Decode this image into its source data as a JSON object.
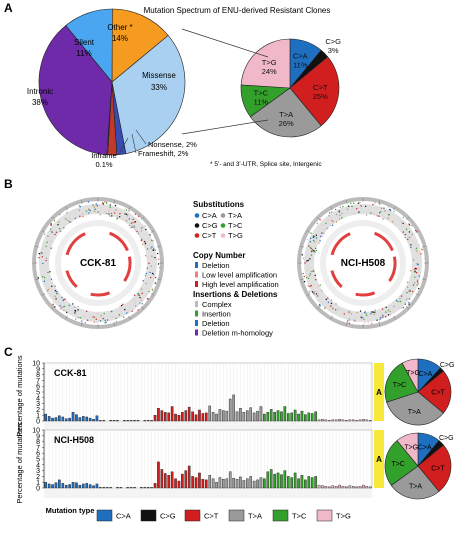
{
  "panel_labels": {
    "a": "A",
    "b": "B",
    "c": "C"
  },
  "colors": {
    "C>A": "#1f6fc1",
    "C>G": "#111111",
    "C>T": "#d11f1f",
    "T>A": "#9a9a9a",
    "T>C": "#34a02c",
    "T>G": "#f0b8c8",
    "silent": "#4aa6f0",
    "other": "#f59b1f",
    "intronic": "#6e2aa8",
    "missense": "#a9d0f0",
    "nonsense": "#3a4bb0",
    "frameshift": "#c0392b",
    "inframe": "#f2dd2c"
  },
  "panelA": {
    "title": "Mutation Spectrum of ENU-derived Resistant Clones",
    "footnote": "* 5'- and 3'-UTR, Splice site, Intergenic"
  },
  "panelB": {
    "sample1": "CCK-81",
    "sample2": "NCI-H508",
    "legend": {
      "substitutions_title": "Substitutions",
      "sub_items": [
        "C>A",
        "T>A",
        "C>G",
        "T>C",
        "C>T",
        "T>G"
      ],
      "copy_title": "Copy Number",
      "copy_items": [
        "Deletion",
        "Low level amplification",
        "High level amplification"
      ],
      "indel_title": "Insertions & Deletions",
      "indel_items": [
        "Complex",
        "Insertion",
        "Deletion",
        "Deletion m-homology"
      ]
    }
  },
  "panelC": {
    "ylabel": "Percentage of mutations",
    "ytick_labels": [
      "0",
      "1",
      "2",
      "3",
      "4",
      "5",
      "6",
      "7",
      "8",
      "9",
      "10"
    ],
    "side_label": "A",
    "legend_title": "Mutation type",
    "legend_items": [
      "C>A",
      "C>G",
      "C>T",
      "T>A",
      "T>C",
      "T>G"
    ]
  },
  "chart_data": [
    {
      "type": "pie",
      "title": "Mutation Spectrum of ENU-derived Resistant Clones",
      "slices": [
        {
          "label": "Other *",
          "value": 14,
          "display": "14%"
        },
        {
          "label": "Missense",
          "value": 33,
          "display": "33%"
        },
        {
          "label": "Nonsense",
          "value": 2,
          "display": "2%"
        },
        {
          "label": "Frameshift",
          "value": 2,
          "display": "2%"
        },
        {
          "label": "Inframe",
          "value": 0.1,
          "display": "0.1%"
        },
        {
          "label": "Intronic",
          "value": 38,
          "display": "38%"
        },
        {
          "label": "Silent",
          "value": 11,
          "display": "11%"
        }
      ]
    },
    {
      "type": "pie",
      "slices": [
        {
          "label": "C>A",
          "value": 11,
          "display": "11%"
        },
        {
          "label": "C>G",
          "value": 3,
          "display": "3%"
        },
        {
          "label": "C>T",
          "value": 25,
          "display": "25%"
        },
        {
          "label": "T>A",
          "value": 26,
          "display": "26%"
        },
        {
          "label": "T>C",
          "value": 11,
          "display": "11%"
        },
        {
          "label": "T>G",
          "value": 24,
          "display": "24%"
        }
      ]
    },
    {
      "type": "bar",
      "title": "CCK-81",
      "ylim": [
        0,
        10
      ],
      "groups": [
        "C>A",
        "C>G",
        "C>T",
        "T>A",
        "T>C",
        "T>G"
      ],
      "values": [
        [
          1.2,
          0.8,
          0.5,
          0.6,
          0.9,
          0.7,
          0.4,
          0.5,
          1.5,
          1.1,
          0.6,
          0.8,
          0.7,
          0.5,
          0.3,
          0.9
        ],
        [
          0.1,
          0.1,
          0.0,
          0.1,
          0.1,
          0.1,
          0.0,
          0.1,
          0.1,
          0.1,
          0.1,
          0.1,
          0.0,
          0.1,
          0.1,
          0.1
        ],
        [
          1.0,
          2.2,
          1.8,
          1.5,
          1.4,
          2.5,
          1.2,
          1.0,
          1.5,
          1.8,
          2.4,
          1.6,
          1.1,
          1.9,
          1.3,
          1.4
        ],
        [
          2.6,
          1.5,
          1.2,
          2.0,
          1.8,
          1.7,
          3.8,
          4.5,
          1.6,
          2.2,
          1.5,
          1.8,
          2.3,
          1.4,
          1.7,
          2.5
        ],
        [
          1.2,
          1.5,
          2.0,
          1.5,
          1.8,
          1.6,
          2.5,
          1.3,
          1.4,
          1.9,
          1.2,
          1.7,
          1.1,
          1.4,
          1.3,
          1.6
        ],
        [
          0.2,
          0.3,
          0.2,
          0.1,
          0.2,
          0.2,
          0.3,
          0.2,
          0.1,
          0.2,
          0.2,
          0.1,
          0.2,
          0.3,
          0.2,
          0.1
        ]
      ],
      "pie": [
        {
          "label": "C>A",
          "value": 12
        },
        {
          "label": "C>G",
          "value": 2
        },
        {
          "label": "C>T",
          "value": 22
        },
        {
          "label": "T>A",
          "value": 34
        },
        {
          "label": "T>C",
          "value": 22
        },
        {
          "label": "T>G",
          "value": 8
        }
      ]
    },
    {
      "type": "bar",
      "title": "NCI-H508",
      "ylim": [
        0,
        10
      ],
      "groups": [
        "C>A",
        "C>G",
        "C>T",
        "T>A",
        "T>C",
        "T>G"
      ],
      "values": [
        [
          1.0,
          0.7,
          0.6,
          0.9,
          1.4,
          0.8,
          0.5,
          0.6,
          1.0,
          0.9,
          0.5,
          0.7,
          0.8,
          0.6,
          0.4,
          0.7
        ],
        [
          0.1,
          0.1,
          0.1,
          0.1,
          0.0,
          0.1,
          0.1,
          0.0,
          0.1,
          0.1,
          0.1,
          0.0,
          0.1,
          0.1,
          0.1,
          0.1
        ],
        [
          0.8,
          4.5,
          3.2,
          2.5,
          2.2,
          2.8,
          1.6,
          1.2,
          2.4,
          3.0,
          3.8,
          2.0,
          1.8,
          2.6,
          1.5,
          1.4
        ],
        [
          2.2,
          1.6,
          1.0,
          1.8,
          1.5,
          1.6,
          2.8,
          1.7,
          1.5,
          1.9,
          1.3,
          1.6,
          2.0,
          1.2,
          1.4,
          1.8
        ],
        [
          1.6,
          2.8,
          3.2,
          2.4,
          2.6,
          2.3,
          3.0,
          2.0,
          1.8,
          2.6,
          1.6,
          2.2,
          1.4,
          2.0,
          1.8,
          2.0
        ],
        [
          0.5,
          0.4,
          0.3,
          0.2,
          0.4,
          0.3,
          0.5,
          0.3,
          0.2,
          0.4,
          0.3,
          0.2,
          0.3,
          0.5,
          0.3,
          0.2
        ]
      ],
      "pie": [
        {
          "label": "C>A",
          "value": 11
        },
        {
          "label": "C>G",
          "value": 3
        },
        {
          "label": "C>T",
          "value": 25
        },
        {
          "label": "T>A",
          "value": 26
        },
        {
          "label": "T>C",
          "value": 24
        },
        {
          "label": "T>G",
          "value": 11
        }
      ]
    }
  ]
}
